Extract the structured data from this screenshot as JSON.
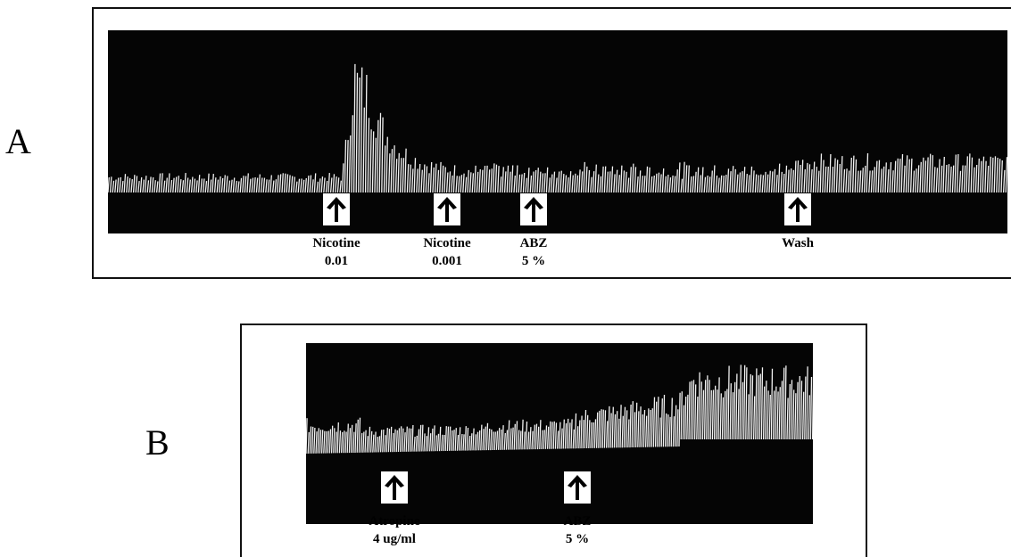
{
  "panels": {
    "a": {
      "letter": "A",
      "markers": [
        {
          "line1": "Nicotine",
          "line2": "0.01"
        },
        {
          "line1": "Nicotine",
          "line2": "0.001"
        },
        {
          "line1": "ABZ",
          "line2": "5 %"
        },
        {
          "line1": "Wash",
          "line2": ""
        }
      ]
    },
    "b": {
      "letter": "B",
      "markers": [
        {
          "line1": "Atropine",
          "line2": "4 ug/ml"
        },
        {
          "line1": "ABZ",
          "line2": "5 %"
        }
      ]
    }
  },
  "colors": {
    "trace_background": "#050505",
    "trace_signal": "#f2f2f2",
    "frame": "#111111"
  },
  "icons": {
    "marker": "up-arrow-icon"
  }
}
